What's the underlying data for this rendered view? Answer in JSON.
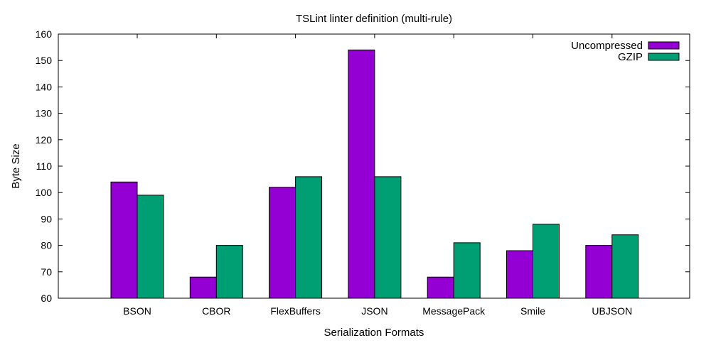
{
  "chart_data": {
    "type": "bar",
    "title": "TSLint linter definition (multi-rule)",
    "xlabel": "Serialization Formats",
    "ylabel": "Byte Size",
    "ylim": [
      60,
      160
    ],
    "yticks": [
      60,
      70,
      80,
      90,
      100,
      110,
      120,
      130,
      140,
      150,
      160
    ],
    "categories": [
      "BSON",
      "CBOR",
      "FlexBuffers",
      "JSON",
      "MessagePack",
      "Smile",
      "UBJSON"
    ],
    "series": [
      {
        "name": "Uncompressed",
        "color": "#9400d3",
        "values": [
          104,
          68,
          102,
          154,
          68,
          78,
          80
        ]
      },
      {
        "name": "GZIP",
        "color": "#009e73",
        "values": [
          99,
          80,
          106,
          106,
          81,
          88,
          84
        ]
      }
    ],
    "legend_position": "top-right",
    "grid": false
  }
}
